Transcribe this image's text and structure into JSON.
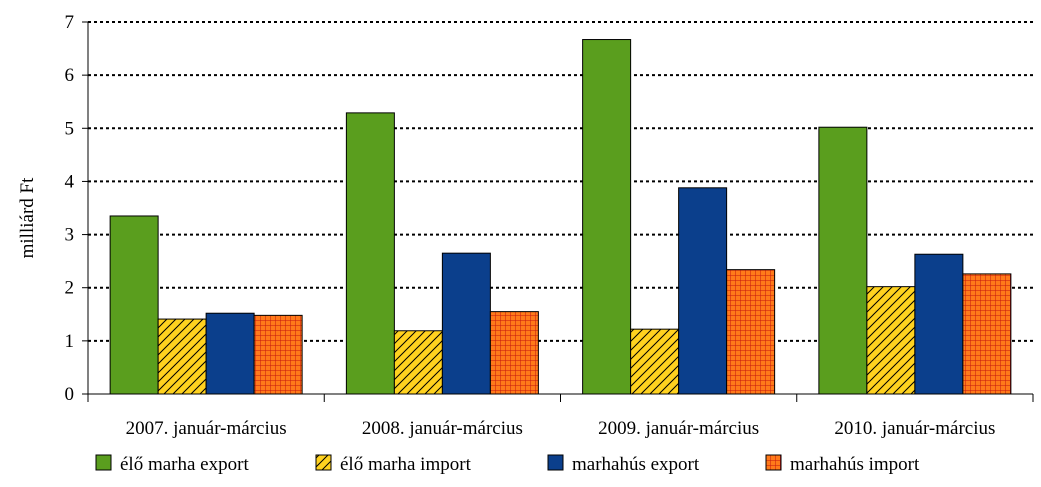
{
  "chart_data": {
    "type": "bar",
    "title": "",
    "xlabel": "",
    "ylabel": "milliárd Ft",
    "ylim": [
      0,
      7
    ],
    "yticks": [
      0,
      1,
      2,
      3,
      4,
      5,
      6,
      7
    ],
    "grid": true,
    "legend": "bottom",
    "categories": [
      "2007. január-március",
      "2008. január-március",
      "2009. január-március",
      "2010. január-március"
    ],
    "series": [
      {
        "name": "élő marha export",
        "values": [
          3.35,
          5.29,
          6.67,
          5.02
        ],
        "color": "#5a9e1e",
        "pattern": "solid"
      },
      {
        "name": "élő marha import",
        "values": [
          1.41,
          1.19,
          1.22,
          2.02
        ],
        "color": "#ffd21f",
        "pattern": "diagonal"
      },
      {
        "name": "marhahús export",
        "values": [
          1.52,
          2.65,
          3.88,
          2.63
        ],
        "color": "#0b3f8c",
        "pattern": "solid"
      },
      {
        "name": "marhahús import",
        "values": [
          1.48,
          1.55,
          2.34,
          2.26
        ],
        "color": "#ff7a1a",
        "pattern": "grid"
      }
    ]
  }
}
